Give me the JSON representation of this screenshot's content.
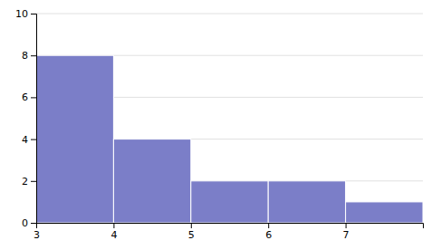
{
  "chart_data": {
    "type": "histogram",
    "bins": [
      3,
      4,
      5,
      6,
      7,
      8
    ],
    "values": [
      8,
      4,
      2,
      2,
      1
    ],
    "color": "#7b7ec8",
    "xlim": [
      3,
      8
    ],
    "ylim": [
      0,
      10
    ],
    "xticks": [
      3,
      4,
      5,
      6,
      7
    ],
    "yticks": [
      0,
      2,
      4,
      6,
      8,
      10
    ],
    "grid": true
  }
}
